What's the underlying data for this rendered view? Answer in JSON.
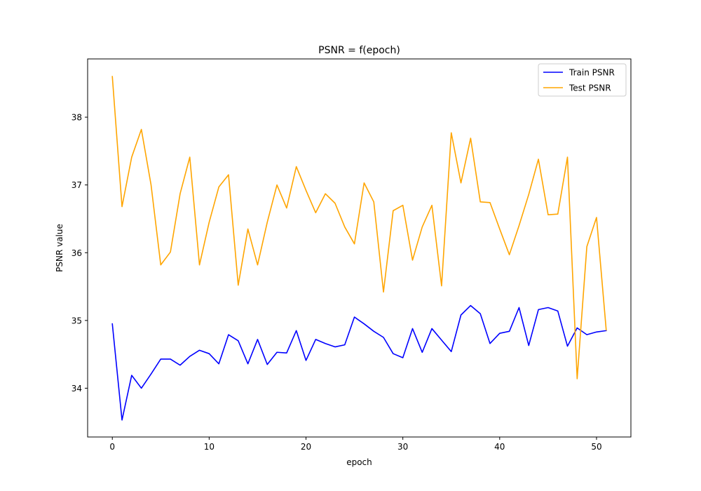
{
  "chart_data": {
    "type": "line",
    "title": "PSNR = f(epoch)",
    "xlabel": "epoch",
    "ylabel": "PSNR value",
    "xlim": [
      -2.55,
      53.55
    ],
    "ylim": [
      33.28,
      38.86
    ],
    "xticks": [
      0,
      10,
      20,
      30,
      40,
      50
    ],
    "yticks": [
      34,
      35,
      36,
      37,
      38
    ],
    "grid": false,
    "legend_position": "top-right",
    "x": [
      0,
      1,
      2,
      3,
      4,
      5,
      6,
      7,
      8,
      9,
      10,
      11,
      12,
      13,
      14,
      15,
      16,
      17,
      18,
      19,
      20,
      21,
      22,
      23,
      24,
      25,
      26,
      27,
      28,
      29,
      30,
      31,
      32,
      33,
      34,
      35,
      36,
      37,
      38,
      39,
      40,
      41,
      42,
      43,
      44,
      45,
      46,
      47,
      48,
      49,
      50,
      51
    ],
    "series": [
      {
        "name": "Train PSNR",
        "color": "#0000ff",
        "values": [
          34.95,
          33.53,
          34.19,
          34.0,
          34.21,
          34.43,
          34.43,
          34.34,
          34.47,
          34.56,
          34.51,
          34.36,
          34.79,
          34.7,
          34.36,
          34.72,
          34.35,
          34.53,
          34.52,
          34.85,
          34.41,
          34.72,
          34.66,
          34.61,
          34.64,
          35.05,
          34.95,
          34.84,
          34.75,
          34.51,
          34.45,
          34.88,
          34.53,
          34.88,
          34.71,
          34.54,
          35.08,
          35.22,
          35.1,
          34.66,
          34.81,
          34.84,
          35.19,
          34.63,
          35.16,
          35.19,
          35.14,
          34.62,
          34.89,
          34.79,
          34.83,
          34.85
        ]
      },
      {
        "name": "Test PSNR",
        "color": "#ffa500",
        "values": [
          38.6,
          36.68,
          37.41,
          37.82,
          37.0,
          35.82,
          36.01,
          36.87,
          37.41,
          35.82,
          36.45,
          36.97,
          37.15,
          35.52,
          36.35,
          35.82,
          36.45,
          37.0,
          36.66,
          37.27,
          36.92,
          36.59,
          36.87,
          36.73,
          36.38,
          36.13,
          37.03,
          36.75,
          35.42,
          36.62,
          36.7,
          35.89,
          36.38,
          36.7,
          35.51,
          37.77,
          37.03,
          37.69,
          36.75,
          36.74,
          36.35,
          35.97,
          36.4,
          36.86,
          37.38,
          36.56,
          36.57,
          37.41,
          34.14,
          36.09,
          36.52,
          34.86
        ]
      }
    ]
  }
}
